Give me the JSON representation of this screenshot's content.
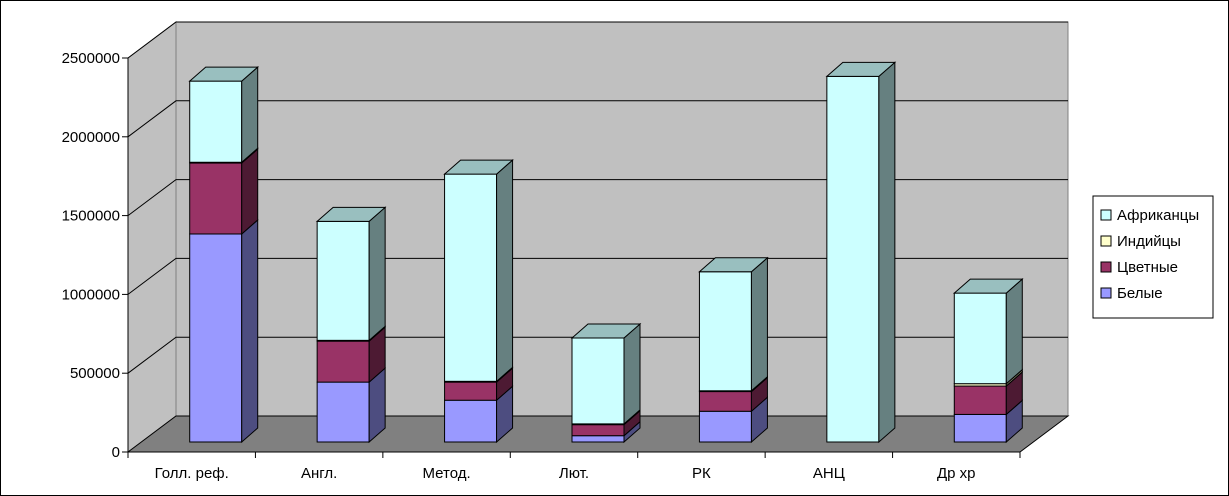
{
  "chart_data": {
    "type": "bar",
    "stacked": true,
    "three_d": true,
    "categories": [
      "Голл. реф.",
      "Англ.",
      "Метод.",
      "Лют.",
      "РК",
      "АНЦ",
      "Др хр"
    ],
    "series": [
      {
        "name": "Белые",
        "color": "#9999ff",
        "values": [
          1320000,
          380000,
          265000,
          40000,
          195000,
          0,
          175000
        ]
      },
      {
        "name": "Цветные",
        "color": "#993366",
        "values": [
          450000,
          260000,
          115000,
          70000,
          125000,
          0,
          180000
        ]
      },
      {
        "name": "Индийцы",
        "color": "#ffffcc",
        "values": [
          5000,
          5000,
          5000,
          5000,
          5000,
          0,
          15000
        ]
      },
      {
        "name": "Африканцы",
        "color": "#ccffff",
        "values": [
          515000,
          755000,
          1315000,
          545000,
          755000,
          2320000,
          575000
        ]
      }
    ],
    "ylim": [
      0,
      2500000
    ],
    "yticks": [
      "0",
      "500000",
      "1000000",
      "1500000",
      "2000000",
      "2500000"
    ],
    "grid": true,
    "legend_position": "right"
  }
}
